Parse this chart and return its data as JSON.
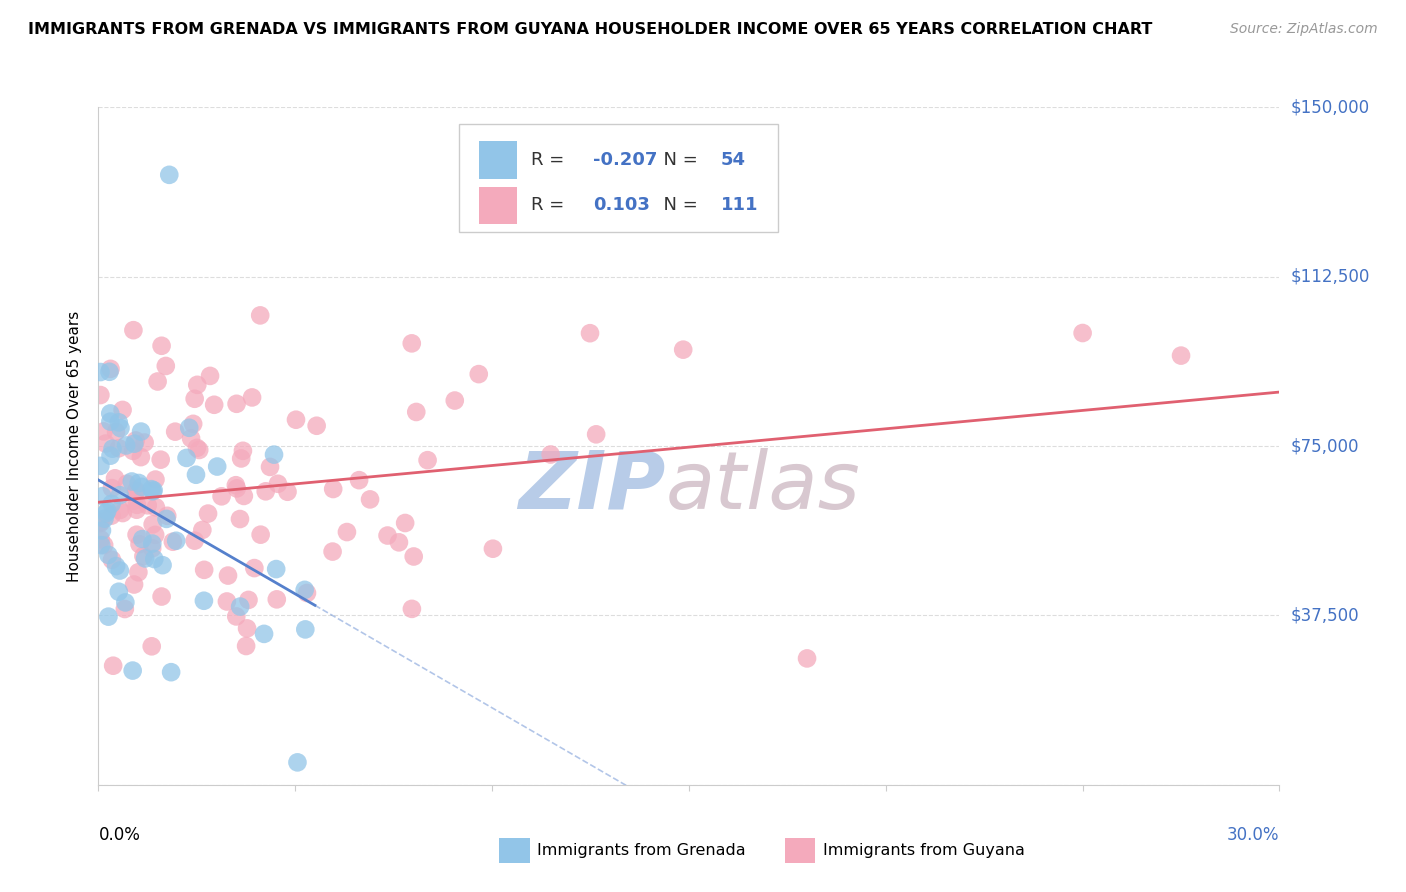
{
  "title": "IMMIGRANTS FROM GRENADA VS IMMIGRANTS FROM GUYANA HOUSEHOLDER INCOME OVER 65 YEARS CORRELATION CHART",
  "source": "Source: ZipAtlas.com",
  "ylabel": "Householder Income Over 65 years",
  "xlim": [
    0.0,
    30.0
  ],
  "ylim": [
    0,
    150000
  ],
  "yticks": [
    0,
    37500,
    75000,
    112500,
    150000
  ],
  "ytick_labels": [
    "",
    "$37,500",
    "$75,000",
    "$112,500",
    "$150,000"
  ],
  "legend_R_grenada": "-0.207",
  "legend_N_grenada": "54",
  "legend_R_guyana": "0.103",
  "legend_N_guyana": "111",
  "color_grenada": "#92C5E8",
  "color_guyana": "#F4AABC",
  "color_line_grenada": "#5580CC",
  "color_line_guyana": "#E06070",
  "watermark_zip_color": "#B8CCE8",
  "watermark_atlas_color": "#D8C8D0",
  "background_color": "#FFFFFF",
  "title_fontsize": 11.5,
  "source_fontsize": 10,
  "axis_label_color": "#4472C4",
  "tick_label_fontsize": 12
}
